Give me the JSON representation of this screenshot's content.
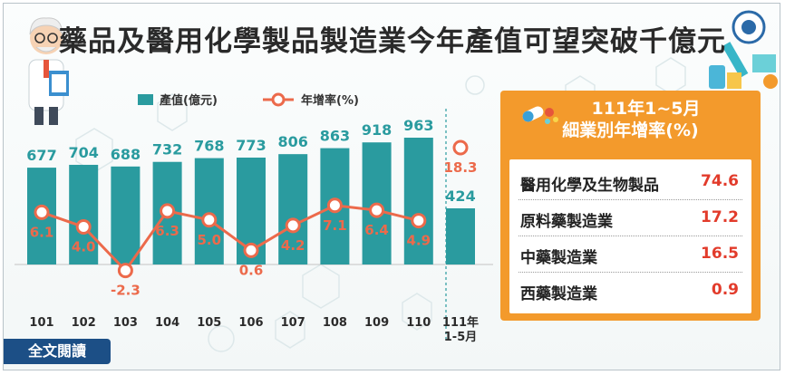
{
  "title": "藥品及醫用化學製品製造業今年產值可望突破千億元",
  "full_text_button": "全文閱讀",
  "colors": {
    "bar": "#2a9b9f",
    "line": "#ec6a4b",
    "panel": "#f39a2c",
    "value_red": "#e23b2b",
    "button": "#1c4f86"
  },
  "icons": {
    "left": "scientist-illustration",
    "right": "lab-equipment-illustration",
    "panel": "capsule-pills-icon"
  },
  "chart_data": {
    "type": "bar",
    "categories": [
      "101",
      "102",
      "103",
      "104",
      "105",
      "106",
      "107",
      "108",
      "109",
      "110",
      "111年 1-5月"
    ],
    "legend": {
      "position": "top-left"
    },
    "series": [
      {
        "name": "產值(億元)",
        "type": "bar",
        "values": [
          677,
          704,
          688,
          732,
          768,
          773,
          806,
          863,
          918,
          963,
          424
        ]
      },
      {
        "name": "年增率(%)",
        "type": "line",
        "values": [
          6.1,
          4.0,
          -2.3,
          6.3,
          5.0,
          0.6,
          4.2,
          7.1,
          6.4,
          4.9,
          18.3
        ]
      }
    ],
    "value_labels": {
      "bars": [
        "677",
        "704",
        "688",
        "732",
        "768",
        "773",
        "806",
        "863",
        "918",
        "963",
        "424"
      ],
      "rates": [
        "6.1",
        "4.0",
        "-2.3",
        "6.3",
        "5.0",
        "0.6",
        "4.2",
        "7.1",
        "6.4",
        "4.9",
        "18.3"
      ]
    }
  },
  "panel": {
    "title_line1": "111年1~5月",
    "title_line2": "細業別年增率(%)",
    "items": [
      {
        "name": "醫用化學及生物製品",
        "value": "74.6"
      },
      {
        "name": "原料藥製造業",
        "value": "17.2"
      },
      {
        "name": "中藥製造業",
        "value": "16.5"
      },
      {
        "name": "西藥製造業",
        "value": "0.9"
      }
    ]
  }
}
